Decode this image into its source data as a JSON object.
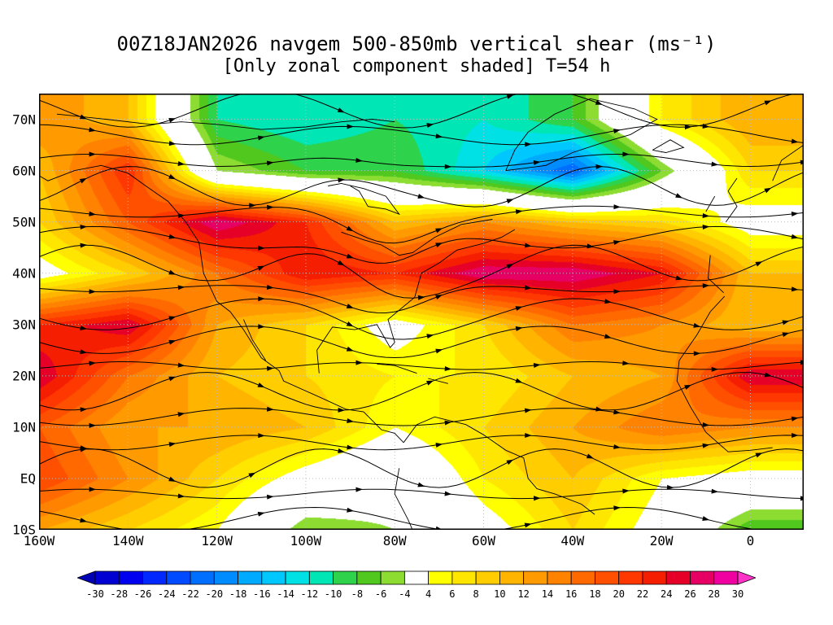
{
  "chart_data": {
    "type": "heatmap",
    "subtype": "filled-contour streamline weather map",
    "title": "00Z18JAN2026 navgem 500-850mb vertical shear (ms⁻¹)",
    "subtitle": "[Only zonal component shaded] T=54 h",
    "model": "navgem",
    "valid_time": "00Z18JAN2026",
    "forecast_hour": "T=54 h",
    "units": "ms⁻¹",
    "x_ticks": [
      "160W",
      "140W",
      "120W",
      "100W",
      "80W",
      "60W",
      "40W",
      "20W",
      "0"
    ],
    "y_ticks": [
      "70N",
      "60N",
      "50N",
      "40N",
      "30N",
      "20N",
      "10N",
      "EQ",
      "10S"
    ],
    "lon_range": [
      -160,
      12
    ],
    "lat_range": [
      -10,
      75
    ],
    "grid_lons": [
      -160,
      -140,
      -120,
      -100,
      -80,
      -60,
      -40,
      -20,
      0
    ],
    "grid_lats": [
      70,
      60,
      50,
      40,
      30,
      20,
      10,
      0,
      -10
    ],
    "values": [
      [
        14,
        10,
        -10,
        -12,
        -10,
        -12,
        -8,
        6,
        12
      ],
      [
        10,
        22,
        -4,
        -8,
        -8,
        -14,
        -22,
        -6,
        8
      ],
      [
        8,
        18,
        28,
        22,
        10,
        14,
        10,
        8,
        2
      ],
      [
        2,
        8,
        16,
        24,
        22,
        28,
        28,
        24,
        10
      ],
      [
        22,
        26,
        12,
        8,
        2,
        8,
        16,
        14,
        10
      ],
      [
        26,
        16,
        10,
        8,
        6,
        6,
        10,
        12,
        26
      ],
      [
        18,
        12,
        12,
        10,
        4,
        8,
        12,
        16,
        14
      ],
      [
        20,
        14,
        8,
        2,
        -2,
        6,
        10,
        4,
        2
      ],
      [
        12,
        8,
        4,
        -6,
        -4,
        2,
        8,
        2,
        -8
      ]
    ],
    "colorbar": {
      "levels": [
        -30,
        -28,
        -26,
        -24,
        -22,
        -20,
        -18,
        -16,
        -14,
        -12,
        -10,
        -8,
        -6,
        -4,
        4,
        6,
        8,
        10,
        12,
        14,
        16,
        18,
        20,
        22,
        24,
        26,
        28,
        30
      ],
      "tick_labels": [
        "-30",
        "-28",
        "-26",
        "-24",
        "-22",
        "-20",
        "-18",
        "-16",
        "-14",
        "-12",
        "-10",
        "-8",
        "-6",
        "-4",
        "4",
        "6",
        "8",
        "10",
        "12",
        "14",
        "16",
        "18",
        "20",
        "22",
        "24",
        "26",
        "28",
        "30"
      ],
      "colors": [
        "#0000b4",
        "#0000d2",
        "#0000f0",
        "#0028ff",
        "#004bff",
        "#006eff",
        "#008cff",
        "#00aaff",
        "#00c8ff",
        "#00e1e6",
        "#00e6b4",
        "#2ed24b",
        "#50c81e",
        "#8cdc32",
        "#ffffff",
        "#ffff00",
        "#ffe600",
        "#ffcd00",
        "#ffb400",
        "#ff9b00",
        "#ff8200",
        "#ff6900",
        "#ff5000",
        "#ff3700",
        "#f51e00",
        "#e60028",
        "#e60064",
        "#f000a0",
        "#ff32c8"
      ]
    },
    "legend_position": "bottom",
    "grid": true
  }
}
